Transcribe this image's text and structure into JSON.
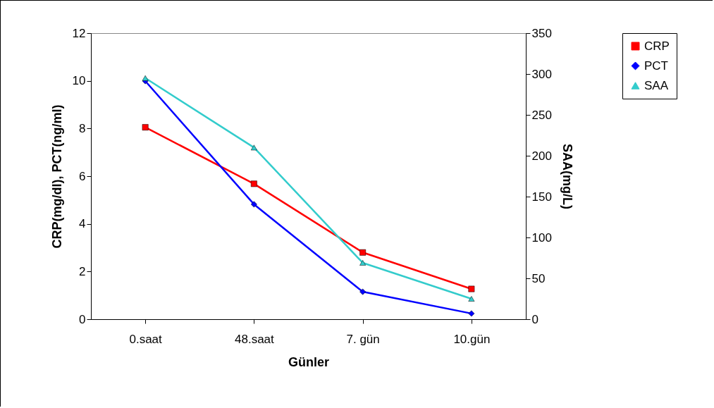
{
  "chart_data": {
    "type": "line",
    "xlabel": "Günler",
    "ylabel": "CRP(mg/dl), PCT(ng/ml)",
    "y2label": "SAA(mg/L)",
    "categories": [
      "0.saat",
      "48.saat",
      "7. gün",
      "10.gün"
    ],
    "series": [
      {
        "name": "CRP",
        "color": "#ff0000",
        "marker": "square",
        "values": [
          8.05,
          5.68,
          2.8,
          1.27
        ]
      },
      {
        "name": "PCT",
        "color": "#0000ff",
        "marker": "diamond",
        "values": [
          9.99,
          4.82,
          1.15,
          0.24
        ]
      },
      {
        "name": "SAA",
        "color": "#33cccc",
        "marker": "triangle",
        "axis": "y2",
        "values": [
          295,
          210,
          69,
          25
        ]
      }
    ],
    "ylim": [
      0,
      12
    ],
    "yticks": [
      0,
      2,
      4,
      6,
      8,
      10,
      12
    ],
    "y2lim": [
      0,
      350
    ],
    "y2ticks": [
      0,
      50,
      100,
      150,
      200,
      250,
      300,
      350
    ],
    "legend": "right",
    "grid": false
  }
}
